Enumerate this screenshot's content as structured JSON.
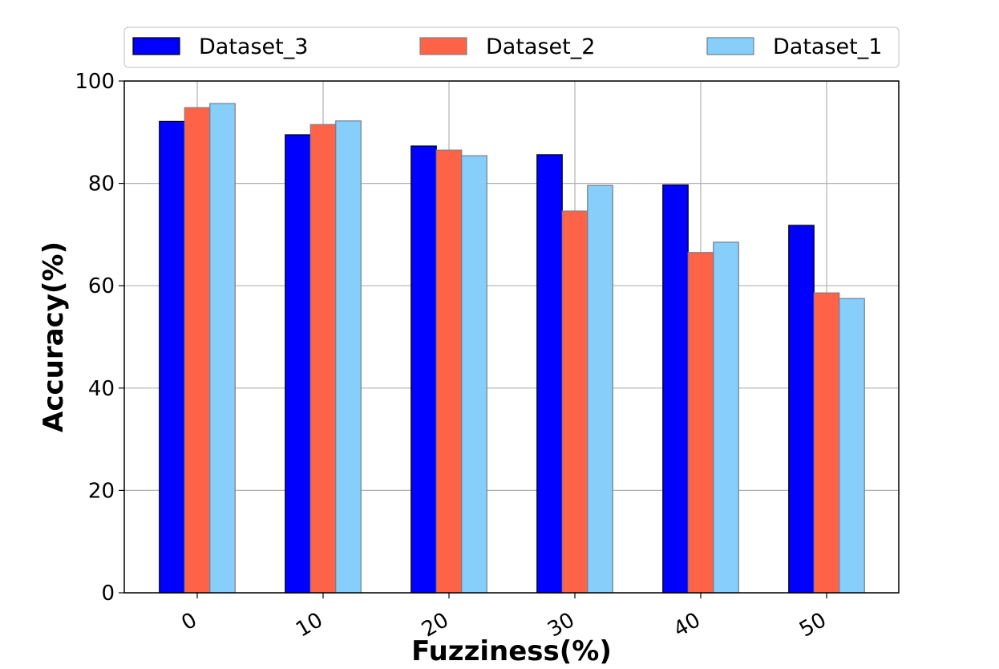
{
  "chart_data": {
    "type": "bar",
    "categories": [
      "0",
      "10",
      "20",
      "30",
      "40",
      "50"
    ],
    "series": [
      {
        "name": "Dataset_3",
        "color": "#0000ff",
        "edge": "#000000",
        "values": [
          92.1,
          89.5,
          87.3,
          85.6,
          79.7,
          71.8
        ]
      },
      {
        "name": "Dataset_2",
        "color": "#ff6347",
        "edge": "#808080",
        "values": [
          94.8,
          91.5,
          86.5,
          74.6,
          66.5,
          58.6
        ]
      },
      {
        "name": "Dataset_1",
        "color": "#87cefa",
        "edge": "#708090",
        "values": [
          95.6,
          92.2,
          85.4,
          79.6,
          68.5,
          57.5
        ]
      }
    ],
    "xlabel": "Fuzziness(%)",
    "ylabel": "Accuracy(%)",
    "ylim": [
      0,
      100
    ],
    "yticks": [
      0,
      20,
      40,
      60,
      80,
      100
    ],
    "grid": true,
    "legend_position": "top"
  }
}
